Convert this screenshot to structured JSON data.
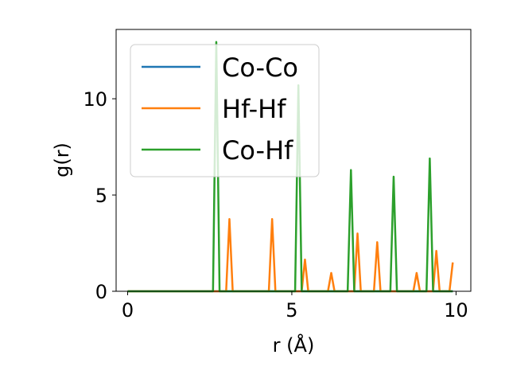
{
  "chart_data": {
    "type": "line",
    "title": "",
    "xlabel": "r (Å)",
    "ylabel": "g(r)",
    "xlim": [
      -0.35,
      10.45
    ],
    "ylim": [
      0,
      13.6
    ],
    "xticks": [
      0,
      5,
      10
    ],
    "yticks": [
      0,
      5,
      10
    ],
    "grid": false,
    "legend": "upper left",
    "series": [
      {
        "name": "Co-Co",
        "color": "#1f77b4",
        "x": [
          0,
          9.9
        ],
        "y": [
          0,
          0
        ]
      },
      {
        "name": "Hf-Hf",
        "color": "#ff7f0e",
        "x": [
          0,
          3.0,
          3.1,
          3.2,
          4.3,
          4.4,
          4.5,
          5.3,
          5.4,
          5.5,
          6.1,
          6.2,
          6.3,
          6.9,
          7.0,
          7.1,
          7.5,
          7.6,
          7.7,
          8.7,
          8.8,
          8.9,
          9.3,
          9.4,
          9.5,
          9.8,
          9.9
        ],
        "y": [
          0,
          0,
          3.75,
          0,
          0,
          3.75,
          0,
          0,
          1.65,
          0,
          0,
          0.95,
          0,
          0,
          3.0,
          0,
          0,
          2.55,
          0,
          0,
          0.95,
          0,
          0,
          2.1,
          0,
          0,
          1.5
        ]
      },
      {
        "name": "Co-Hf",
        "color": "#2ca02c",
        "x": [
          0,
          2.6,
          2.7,
          2.8,
          5.1,
          5.2,
          5.3,
          6.7,
          6.8,
          6.9,
          8.0,
          8.1,
          8.2,
          9.1,
          9.2,
          9.3,
          9.9
        ],
        "y": [
          0,
          0,
          12.95,
          0,
          0,
          10.7,
          0,
          0,
          6.3,
          0,
          0,
          5.95,
          0,
          0,
          6.9,
          0,
          0
        ]
      }
    ]
  }
}
